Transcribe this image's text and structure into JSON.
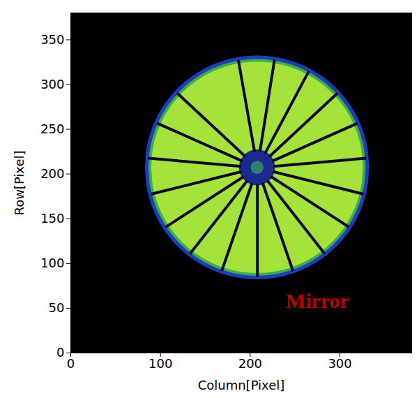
{
  "chart_data": {
    "type": "image",
    "xlabel": "Column[Pixel]",
    "ylabel": "Row[Pixel]",
    "xlim": [
      0,
      380
    ],
    "ylim": [
      0,
      380
    ],
    "xticks": [
      0,
      100,
      200,
      300
    ],
    "yticks": [
      0,
      50,
      100,
      150,
      200,
      250,
      300,
      350
    ],
    "annotations": [
      {
        "text": "Mirror",
        "x": 275,
        "y": 58,
        "color": "#b80000"
      }
    ],
    "disk": {
      "center": [
        208,
        207
      ],
      "radius": 118
    },
    "hub": {
      "radius": 18
    },
    "spokes": {
      "angles": [
        100,
        81,
        62,
        43,
        24,
        5,
        -14,
        -33,
        -52,
        -71,
        -90,
        -109,
        -128,
        -147,
        -166,
        175,
        156,
        137
      ]
    }
  }
}
